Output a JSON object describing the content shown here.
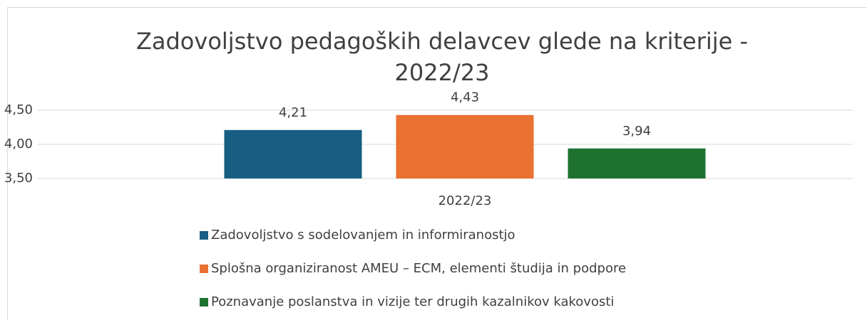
{
  "chart_data": {
    "type": "bar",
    "title": "Zadovoljstvo pedagoških delavcev glede na kriterije - 2022/23",
    "categories": [
      "2022/23"
    ],
    "series": [
      {
        "name": "Zadovoljstvo s sodelovanjem in informiranostjo",
        "color": "#175e82",
        "values": [
          4.21
        ],
        "value_labels": [
          "4,21"
        ]
      },
      {
        "name": "Splošna organiziranost AMEU – ECM, elementi študija in podpore",
        "color": "#e97132",
        "values": [
          4.43
        ],
        "value_labels": [
          "4,43"
        ]
      },
      {
        "name": "Poznavanje poslanstva in vizije ter drugih kazalnikov kakovosti",
        "color": "#1e7230",
        "values": [
          3.94
        ],
        "value_labels": [
          "3,94"
        ]
      }
    ],
    "ylim": [
      3.5,
      4.5
    ],
    "yticks": [
      {
        "value": 3.5,
        "label": "3,50"
      },
      {
        "value": 4.0,
        "label": "4,00"
      },
      {
        "value": 4.5,
        "label": "4,50"
      }
    ],
    "grid": true,
    "legend": "bottom"
  }
}
